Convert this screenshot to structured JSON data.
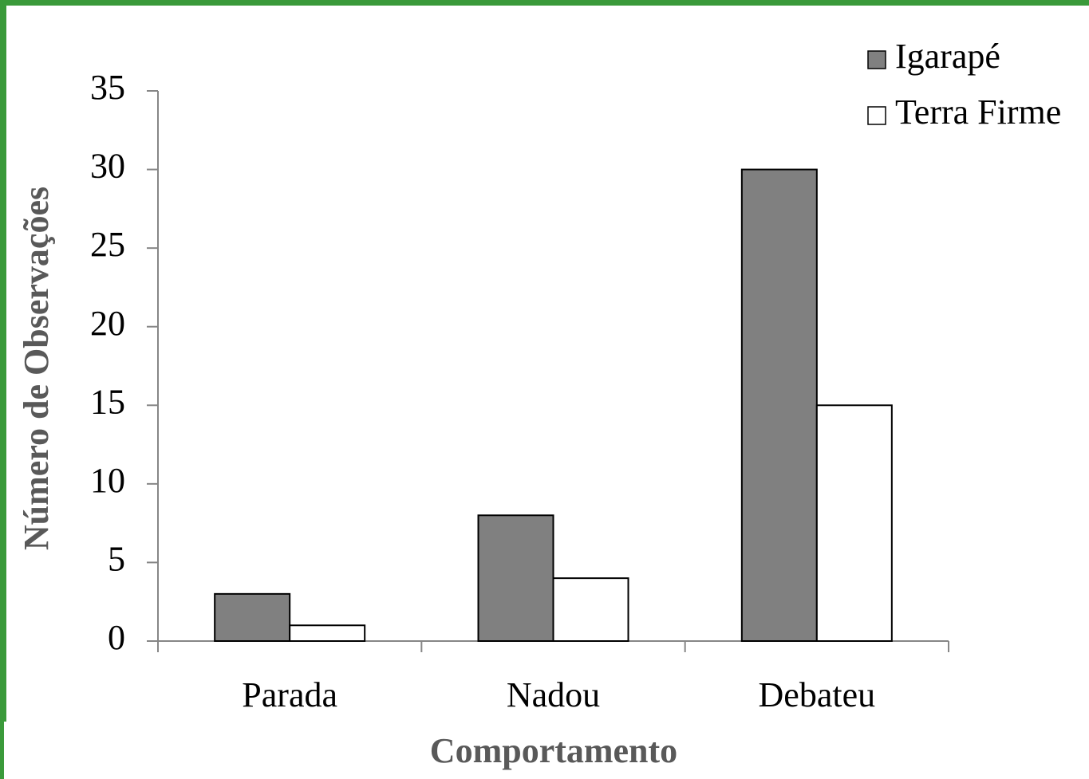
{
  "chart_data": {
    "type": "bar",
    "categories": [
      "Parada",
      "Nadou",
      "Debateu"
    ],
    "series": [
      {
        "name": "Igarapé",
        "color": "#808080",
        "values": [
          3,
          8,
          30
        ]
      },
      {
        "name": "Terra Firme",
        "color": "#ffffff",
        "values": [
          1,
          4,
          15
        ]
      }
    ],
    "xlabel": "Comportamento",
    "ylabel": "Número de Observações",
    "ylim": [
      0,
      35
    ],
    "yticks": [
      0,
      5,
      10,
      15,
      20,
      25,
      30,
      35
    ],
    "legend": "top-right",
    "grid": false
  }
}
